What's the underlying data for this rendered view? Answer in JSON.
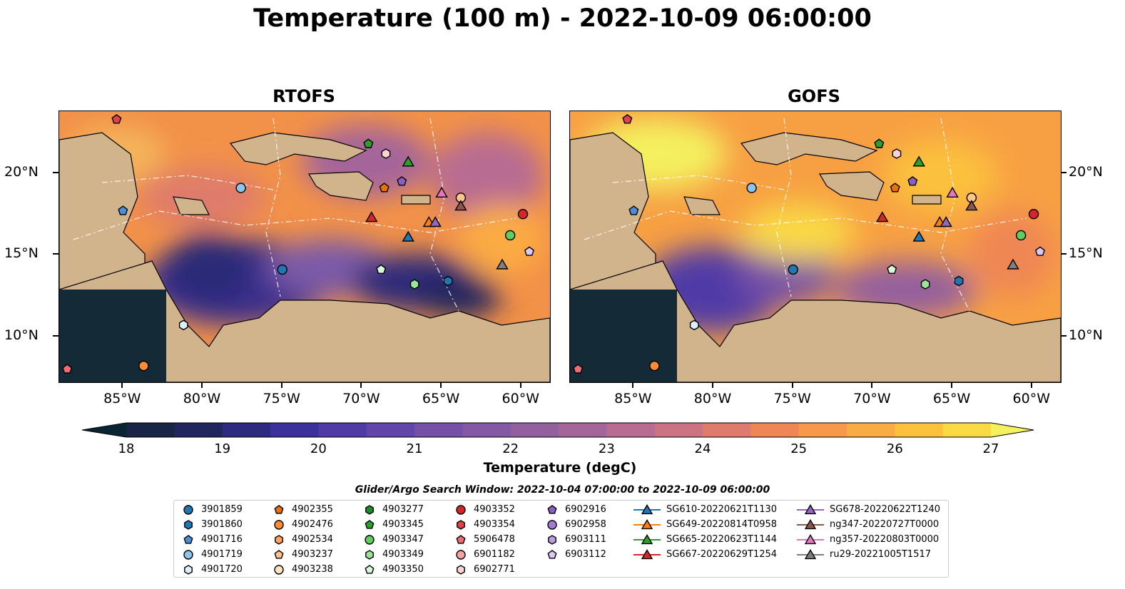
{
  "title": "Temperature (100 m) - 2022-10-09 06:00:00",
  "panels": [
    {
      "title": "RTOFS"
    },
    {
      "title": "GOFS"
    }
  ],
  "axes": {
    "lon_ticks": [
      "85°W",
      "80°W",
      "75°W",
      "70°W",
      "65°W",
      "60°W"
    ],
    "lat_ticks": [
      "20°N",
      "15°N",
      "10°N"
    ]
  },
  "colorbar": {
    "label": "Temperature (degC)",
    "ticks": [
      "18",
      "19",
      "20",
      "21",
      "22",
      "23",
      "24",
      "25",
      "26",
      "27"
    ],
    "range": [
      18,
      27
    ],
    "extend": "both",
    "colors": [
      "#0a2433",
      "#182545",
      "#22265e",
      "#2d2b80",
      "#3b309c",
      "#4f3aa6",
      "#6245a8",
      "#7450a7",
      "#8358a4",
      "#935f9f",
      "#a4659a",
      "#b86c91",
      "#cb7382",
      "#de7b6c",
      "#ef8655",
      "#f7984a",
      "#fbab43",
      "#fbc13c",
      "#f9d944",
      "#f4f05e"
    ]
  },
  "search_window": "Glider/Argo Search Window: 2022-10-04 07:00:00 to 2022-10-09 06:00:00",
  "legend": {
    "columns": [
      [
        {
          "label": "3901859",
          "shape": "circle",
          "color": "#1f77b4"
        },
        {
          "label": "3901860",
          "shape": "hexagon",
          "color": "#1f77b4"
        },
        {
          "label": "4901716",
          "shape": "pentagon",
          "color": "#4a90d9"
        },
        {
          "label": "4901719",
          "shape": "circle",
          "color": "#8cc5ec"
        },
        {
          "label": "4901720",
          "shape": "hexagon",
          "color": "#dff0fb"
        }
      ],
      [
        {
          "label": "4902355",
          "shape": "pentagon",
          "color": "#e8710a"
        },
        {
          "label": "4902476",
          "shape": "circle",
          "color": "#ff8c33"
        },
        {
          "label": "4902534",
          "shape": "hexagon",
          "color": "#ffa55c"
        },
        {
          "label": "4903237",
          "shape": "pentagon",
          "color": "#ffc48a"
        },
        {
          "label": "4903238",
          "shape": "circle",
          "color": "#ffe2c2"
        }
      ],
      [
        {
          "label": "4903277",
          "shape": "hexagon",
          "color": "#1e8a28"
        },
        {
          "label": "4903345",
          "shape": "pentagon",
          "color": "#2ca02c"
        },
        {
          "label": "4903347",
          "shape": "circle",
          "color": "#5fce5f"
        },
        {
          "label": "4903349",
          "shape": "hexagon",
          "color": "#99e599"
        },
        {
          "label": "4903350",
          "shape": "pentagon",
          "color": "#d6f8d6"
        }
      ],
      [
        {
          "label": "4903352",
          "shape": "circle",
          "color": "#d62728"
        },
        {
          "label": "4903354",
          "shape": "hexagon",
          "color": "#e0414a"
        },
        {
          "label": "5906478",
          "shape": "pentagon",
          "color": "#f16b72"
        },
        {
          "label": "6901182",
          "shape": "circle",
          "color": "#f7a2a2"
        },
        {
          "label": "6902771",
          "shape": "hexagon",
          "color": "#fcd2d2"
        }
      ],
      [
        {
          "label": "6902916",
          "shape": "pentagon",
          "color": "#8a5fc0"
        },
        {
          "label": "6902958",
          "shape": "circle",
          "color": "#a47bd1"
        },
        {
          "label": "6903111",
          "shape": "hexagon",
          "color": "#bc9ce0"
        },
        {
          "label": "6903112",
          "shape": "pentagon",
          "color": "#dcc8f4"
        }
      ],
      [
        {
          "label": "SG610-20220621T1130",
          "shape": "triangle",
          "color": "#1f77b4"
        },
        {
          "label": "SG649-20220814T0958",
          "shape": "triangle",
          "color": "#ff7f0e"
        },
        {
          "label": "SG665-20220623T1144",
          "shape": "triangle",
          "color": "#2ca02c"
        },
        {
          "label": "SG667-20220629T1254",
          "shape": "triangle",
          "color": "#d62728"
        }
      ],
      [
        {
          "label": "SG678-20220622T1240",
          "shape": "triangle",
          "color": "#9467bd"
        },
        {
          "label": "ng347-20220727T0000",
          "shape": "triangle",
          "color": "#8c564b"
        },
        {
          "label": "ng357-20220803T0000",
          "shape": "triangle",
          "color": "#e377c2"
        },
        {
          "label": "ru29-20221005T1517",
          "shape": "triangle",
          "color": "#7f7f7f"
        }
      ]
    ]
  },
  "markers": [
    {
      "shape": "pentagon",
      "color": "#e0414a",
      "lon": -85.4,
      "lat": 23.3
    },
    {
      "shape": "pentagon",
      "color": "#2ca02c",
      "lon": -69.6,
      "lat": 21.8
    },
    {
      "shape": "hexagon",
      "color": "#fcd2d2",
      "lon": -68.5,
      "lat": 21.2
    },
    {
      "shape": "triangle",
      "color": "#2ca02c",
      "lon": -67.1,
      "lat": 20.7
    },
    {
      "shape": "pentagon",
      "color": "#8a5fc0",
      "lon": -67.5,
      "lat": 19.5
    },
    {
      "shape": "circle",
      "color": "#8cc5ec",
      "lon": -77.6,
      "lat": 19.1
    },
    {
      "shape": "pentagon",
      "color": "#e8710a",
      "lon": -68.6,
      "lat": 19.1
    },
    {
      "shape": "triangle",
      "color": "#e377c2",
      "lon": -65.0,
      "lat": 18.8
    },
    {
      "shape": "circle",
      "color": "#ffc48a",
      "lon": -63.8,
      "lat": 18.5
    },
    {
      "shape": "triangle",
      "color": "#8c564b",
      "lon": -63.8,
      "lat": 18.0
    },
    {
      "shape": "pentagon",
      "color": "#4a90d9",
      "lon": -85.0,
      "lat": 17.7
    },
    {
      "shape": "circle",
      "color": "#d62728",
      "lon": -59.9,
      "lat": 17.5
    },
    {
      "shape": "triangle",
      "color": "#d62728",
      "lon": -69.4,
      "lat": 17.3
    },
    {
      "shape": "triangle",
      "color": "#ff7f0e",
      "lon": -65.8,
      "lat": 17.0
    },
    {
      "shape": "triangle",
      "color": "#9467bd",
      "lon": -65.4,
      "lat": 17.0
    },
    {
      "shape": "circle",
      "color": "#5fce5f",
      "lon": -60.7,
      "lat": 16.2
    },
    {
      "shape": "triangle",
      "color": "#1f77b4",
      "lon": -67.1,
      "lat": 16.1
    },
    {
      "shape": "pentagon",
      "color": "#dcc8f4",
      "lon": -59.5,
      "lat": 15.2
    },
    {
      "shape": "triangle",
      "color": "#7f7f7f",
      "lon": -61.2,
      "lat": 14.4
    },
    {
      "shape": "circle",
      "color": "#1f77b4",
      "lon": -75.0,
      "lat": 14.1
    },
    {
      "shape": "pentagon",
      "color": "#d6f8d6",
      "lon": -68.8,
      "lat": 14.1
    },
    {
      "shape": "hexagon",
      "color": "#1f77b4",
      "lon": -64.6,
      "lat": 13.4
    },
    {
      "shape": "hexagon",
      "color": "#99e599",
      "lon": -66.7,
      "lat": 13.2
    },
    {
      "shape": "hexagon",
      "color": "#dff0fb",
      "lon": -81.2,
      "lat": 10.7
    },
    {
      "shape": "circle",
      "color": "#ff8c33",
      "lon": -83.7,
      "lat": 8.2
    },
    {
      "shape": "pentagon",
      "color": "#f16b72",
      "lon": -88.5,
      "lat": 8.0
    }
  ]
}
